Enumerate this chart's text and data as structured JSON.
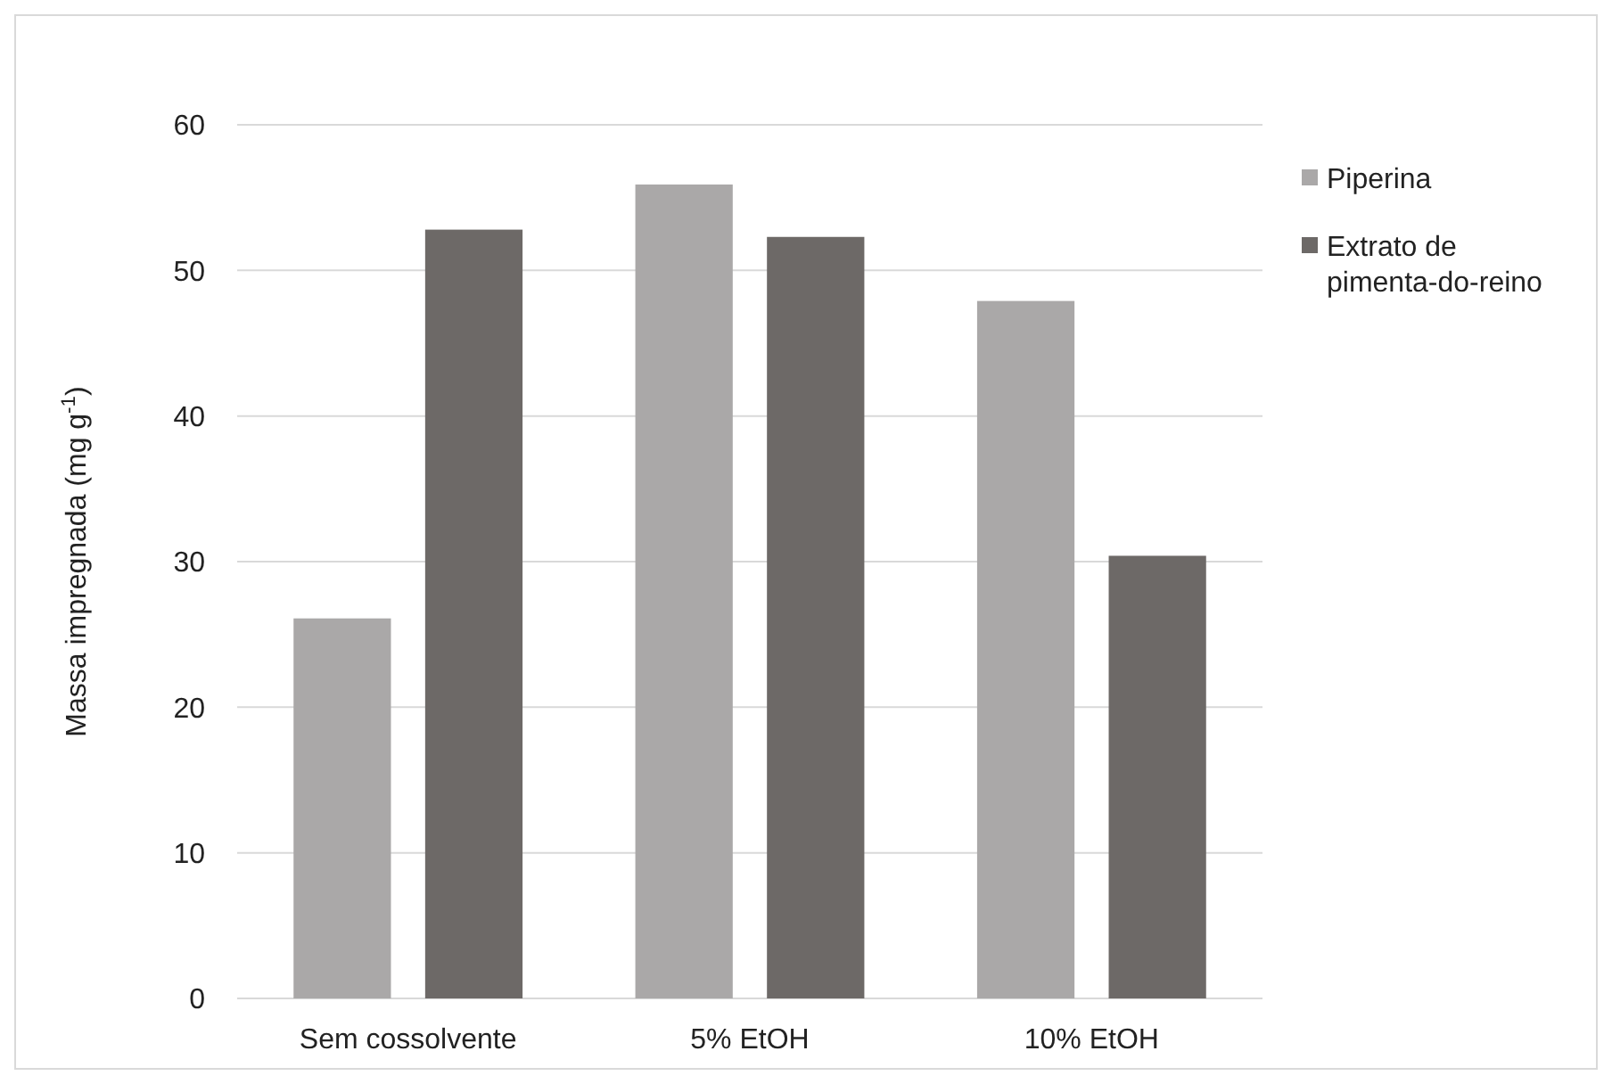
{
  "chart_data": {
    "type": "bar",
    "ylabel": "Massa impregnada  (mg g$^{-1}$)",
    "categories": [
      "Sem cossolvente",
      "5% EtOH",
      "10% EtOH"
    ],
    "series": [
      {
        "name": "Piperina",
        "color": "#aaa8a8",
        "values": [
          26.1,
          55.9,
          47.9
        ]
      },
      {
        "name": "Extrato de pimenta-do-reino",
        "color": "#6d6967",
        "values": [
          52.8,
          52.3,
          30.4
        ]
      }
    ],
    "ylim": [
      0,
      60
    ],
    "yticks": [
      0,
      10,
      20,
      30,
      40,
      50,
      60
    ],
    "grid": "y",
    "legend": "right"
  }
}
